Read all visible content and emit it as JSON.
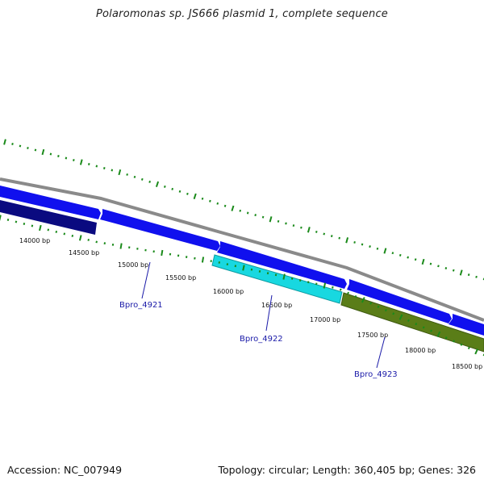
{
  "title": "Polaromonas sp. JS666 plasmid 1, complete sequence",
  "footer": {
    "accession": "Accession: NC_007949",
    "summary": "Topology: circular; Length: 360,405 bp; Genes: 326"
  },
  "colors": {
    "backbone": "#8a8a8a",
    "forward_gene": "#1010ee",
    "reverse_gene_dark": "#0a0a80",
    "gene_cyan": "#18d8e0",
    "gene_olive": "#5a7d18",
    "tick": "#1a8a1a",
    "gene_label": "#1a1aa8"
  },
  "scale_labels": [
    "14000 bp",
    "14500 bp",
    "15000 bp",
    "15500 bp",
    "16000 bp",
    "16500 bp",
    "17000 bp",
    "17500 bp",
    "18000 bp",
    "18500 bp"
  ],
  "gene_labels": [
    "Bpro_4921",
    "Bpro_4922",
    "Bpro_4923"
  ]
}
